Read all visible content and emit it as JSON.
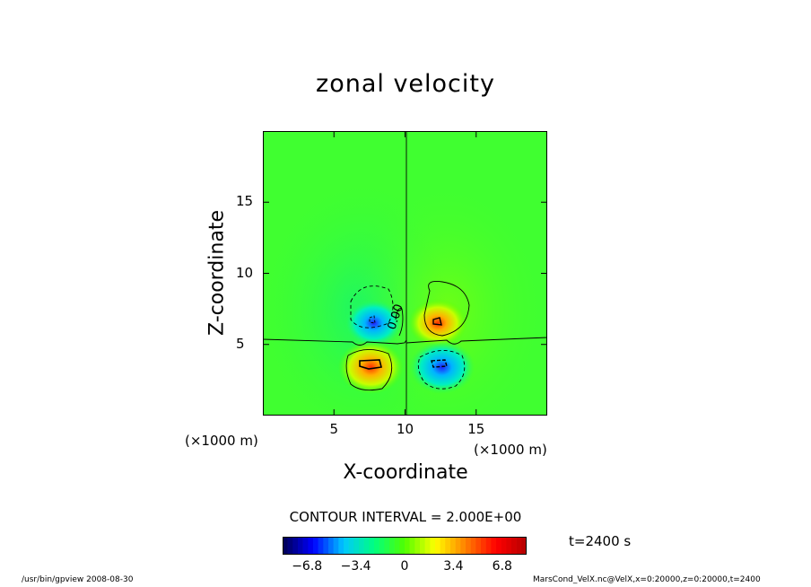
{
  "chart_data": {
    "type": "heatmap",
    "title": "zonal velocity",
    "xlabel": "X-coordinate",
    "ylabel": "Z-coordinate",
    "x_unit": "(×1000 m)",
    "y_unit": "(×1000 m)",
    "xlim": [
      0,
      20
    ],
    "ylim": [
      0,
      20
    ],
    "x_ticks": [
      "5",
      "10",
      "15"
    ],
    "x_tick_values": [
      5,
      10,
      15
    ],
    "y_ticks": [
      "5",
      "10",
      "15"
    ],
    "y_tick_values": [
      5,
      10,
      15
    ],
    "contour_interval_label": "CONTOUR INTERVAL = 2.000E+00",
    "contour_label": "0.00",
    "colorbar": {
      "range": [
        -8.5,
        8.5
      ],
      "tick_labels": [
        "−6.8",
        "−3.4",
        "0",
        "3.4",
        "6.8"
      ],
      "tick_values": [
        -6.8,
        -3.4,
        0,
        3.4,
        6.8
      ],
      "colors": [
        "#000050",
        "#0000ff",
        "#00c8ff",
        "#00ff80",
        "#50ff00",
        "#ffff00",
        "#ff8000",
        "#ff0000",
        "#b40000"
      ]
    },
    "features": [
      {
        "name": "negative-core-upper-left",
        "x": 7.8,
        "z": 6.5,
        "value": -6.0
      },
      {
        "name": "positive-core-upper-right",
        "x": 12.3,
        "z": 6.5,
        "value": 6.0
      },
      {
        "name": "positive-core-lower-left",
        "x": 7.6,
        "z": 3.4,
        "value": 7.5
      },
      {
        "name": "negative-core-lower-right",
        "x": 12.6,
        "z": 3.4,
        "value": -7.5
      }
    ],
    "time_label": "t=2400 s",
    "footer_left": "/usr/bin/gpview   2008-08-30",
    "footer_right": "MarsCond_VelX.nc@VelX,x=0:20000,z=0:20000,t=2400"
  }
}
